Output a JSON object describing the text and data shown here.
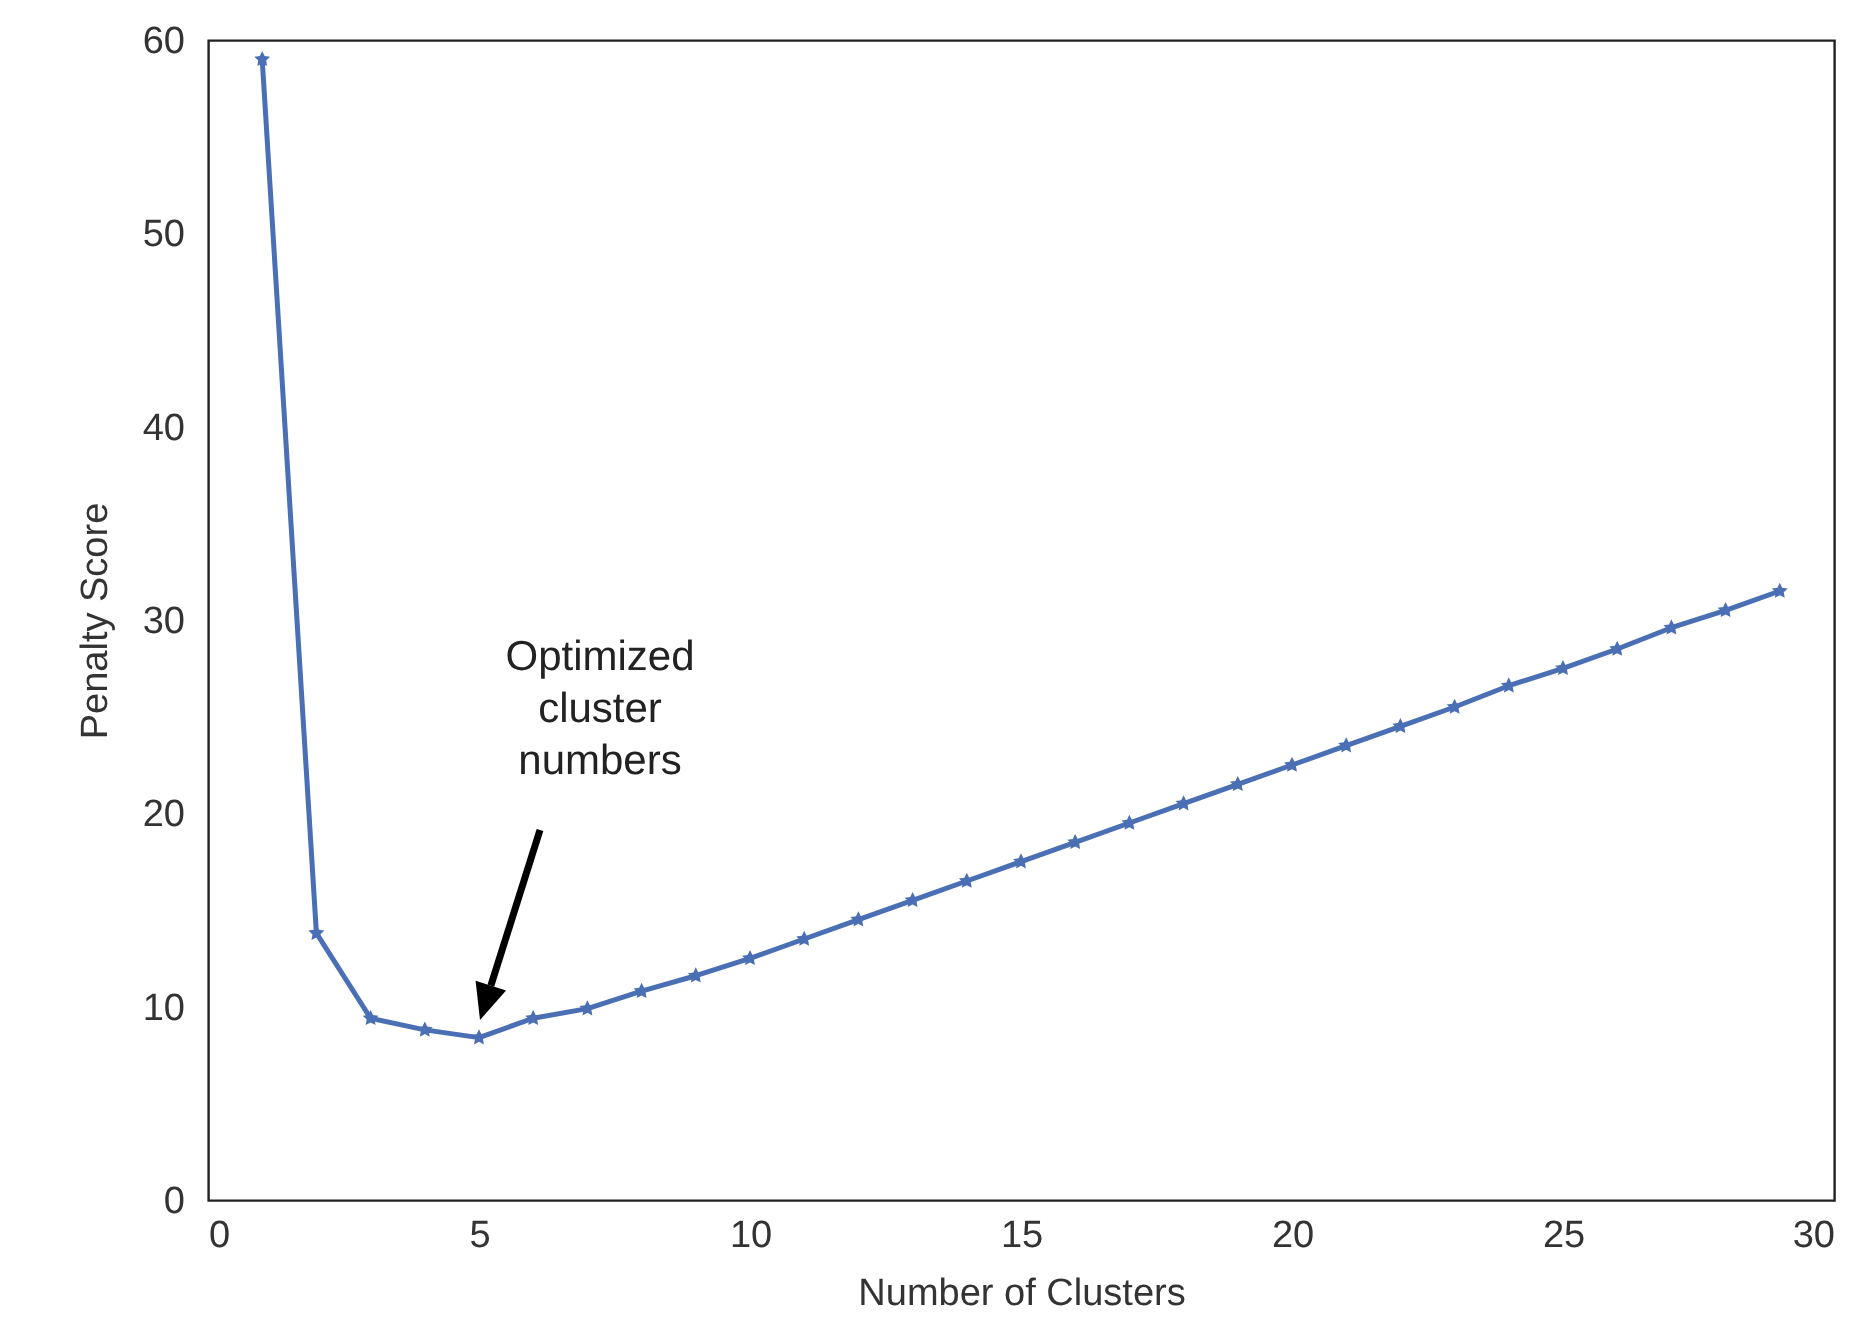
{
  "chart_data": {
    "type": "line",
    "xlabel": "Number of Clusters",
    "ylabel": "Penalty Score",
    "x": [
      1,
      2,
      3,
      4,
      5,
      6,
      7,
      8,
      9,
      10,
      11,
      12,
      13,
      14,
      15,
      16,
      17,
      18,
      19,
      20,
      21,
      22,
      23,
      24,
      25,
      26,
      27,
      28,
      29
    ],
    "series": [
      {
        "color": "#4a6fb5",
        "values": [
          59,
          13.8,
          9.4,
          8.8,
          8.4,
          9.4,
          9.9,
          10.8,
          11.6,
          12.5,
          13.5,
          14.5,
          15.5,
          16.5,
          17.5,
          18.5,
          19.5,
          20.5,
          21.5,
          22.5,
          23.5,
          24.5,
          25.5,
          26.6,
          27.5,
          28.5,
          29.6,
          30.5,
          31.5
        ]
      }
    ],
    "xlim": [
      0,
      30
    ],
    "xticks": [
      0,
      5,
      10,
      15,
      20,
      25,
      30
    ],
    "ylim": [
      0,
      60
    ],
    "yticks": [
      0,
      10,
      20,
      30,
      40,
      50,
      60
    ],
    "grid": false,
    "legend": false,
    "marker": "star",
    "line_style": "solid",
    "annotations": [
      "Optimized cluster numbers"
    ]
  }
}
